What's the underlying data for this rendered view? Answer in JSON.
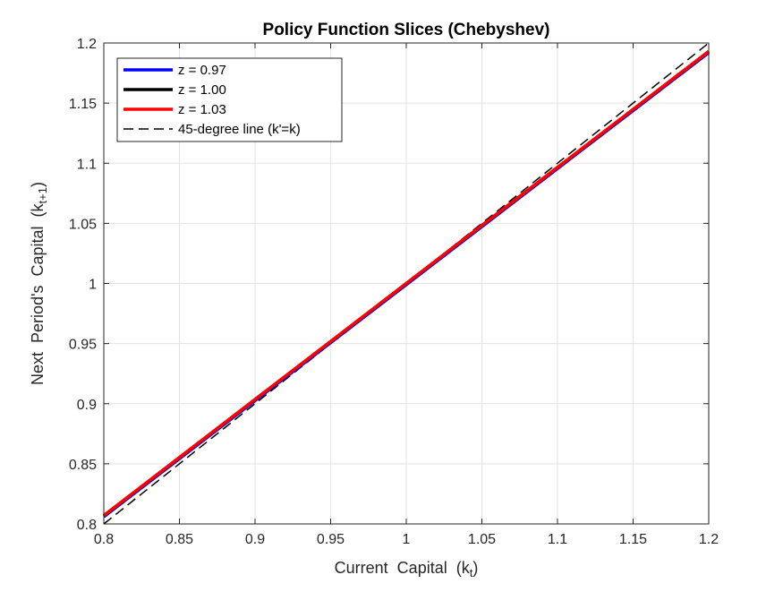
{
  "chart_data": {
    "type": "line",
    "title": "Policy Function Slices (Chebyshev)",
    "xlabel": "Current  Capital  (k",
    "xlabel_sub": "t",
    "xlabel_close": ")",
    "ylabel": "Next  Period's  Capital  (k",
    "ylabel_sub": "t+1",
    "ylabel_close": ")",
    "xlim": [
      0.8,
      1.2
    ],
    "ylim": [
      0.8,
      1.2
    ],
    "xticks": [
      0.8,
      0.85,
      0.9,
      0.95,
      1,
      1.05,
      1.1,
      1.15,
      1.2
    ],
    "xtick_labels": [
      "0.8",
      "0.85",
      "0.9",
      "0.95",
      "1",
      "1.05",
      "1.1",
      "1.15",
      "1.2"
    ],
    "yticks": [
      0.8,
      0.85,
      0.9,
      0.95,
      1,
      1.05,
      1.1,
      1.15,
      1.2
    ],
    "ytick_labels": [
      "0.8",
      "0.85",
      "0.9",
      "0.95",
      "1",
      "1.05",
      "1.1",
      "1.15",
      "1.2"
    ],
    "grid": true,
    "legend_position": "top-left",
    "series": [
      {
        "name": "z = 0.97",
        "color": "#0000ff",
        "style": "solid",
        "x": [
          0.8,
          0.9,
          1.0,
          1.1,
          1.2
        ],
        "y": [
          0.806,
          0.9025,
          0.999,
          1.0955,
          1.192
        ]
      },
      {
        "name": "z = 1.00",
        "color": "#000000",
        "style": "solid",
        "x": [
          0.8,
          0.9,
          1.0,
          1.1,
          1.2
        ],
        "y": [
          0.807,
          0.9035,
          1.0,
          1.0965,
          1.193
        ]
      },
      {
        "name": "z = 1.03",
        "color": "#ff0000",
        "style": "solid",
        "x": [
          0.8,
          0.9,
          1.0,
          1.1,
          1.2
        ],
        "y": [
          0.807,
          0.9035,
          1.0,
          1.0965,
          1.193
        ]
      },
      {
        "name": "45-degree line (k'=k)",
        "color": "#000000",
        "style": "dashed",
        "x": [
          0.8,
          1.2
        ],
        "y": [
          0.8,
          1.2
        ]
      }
    ]
  }
}
